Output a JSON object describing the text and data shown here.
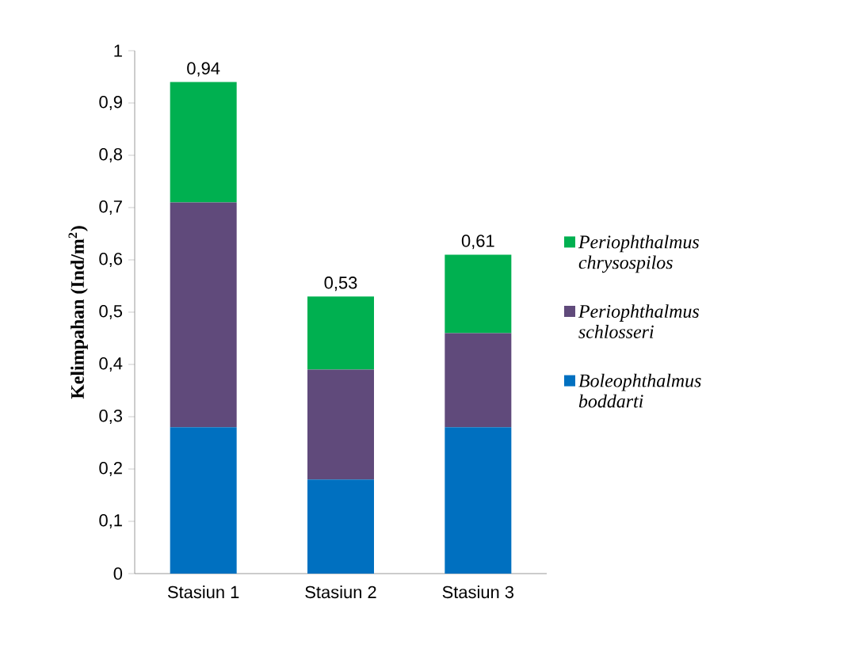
{
  "chart_data": {
    "type": "bar",
    "stacked": true,
    "ylabel": "Kelimpahan  (Ind/m$^{2}$)",
    "categories": [
      "Stasiun 1",
      "Stasiun 2",
      "Stasiun 3"
    ],
    "series": [
      {
        "name": "Boleophthalmus boddarti",
        "color": "#0070c0",
        "values": [
          0.28,
          0.18,
          0.28
        ]
      },
      {
        "name": "Periophthalmus schlosseri",
        "color": "#604a7b",
        "values": [
          0.43,
          0.21,
          0.18
        ]
      },
      {
        "name": "Periophthalmus chrysospilos",
        "color": "#00b050",
        "values": [
          0.23,
          0.14,
          0.15
        ]
      }
    ],
    "totals": [
      "0,94",
      "0,53",
      "0,61"
    ],
    "ylim": [
      0,
      1
    ],
    "yticks": [
      0,
      {
        "value": 0.1,
        "label": "0,1"
      },
      {
        "value": 0.2,
        "label": "0,2"
      },
      {
        "value": 0.3,
        "label": "0,3"
      },
      {
        "value": 0.4,
        "label": "0,4"
      },
      {
        "value": 0.5,
        "label": "0,5"
      },
      {
        "value": 0.6,
        "label": "0,6"
      },
      {
        "value": 0.7,
        "label": "0,7"
      },
      {
        "value": 0.8,
        "label": "0,8"
      },
      {
        "value": 0.9,
        "label": "0,9"
      },
      1
    ],
    "legend": "right"
  }
}
